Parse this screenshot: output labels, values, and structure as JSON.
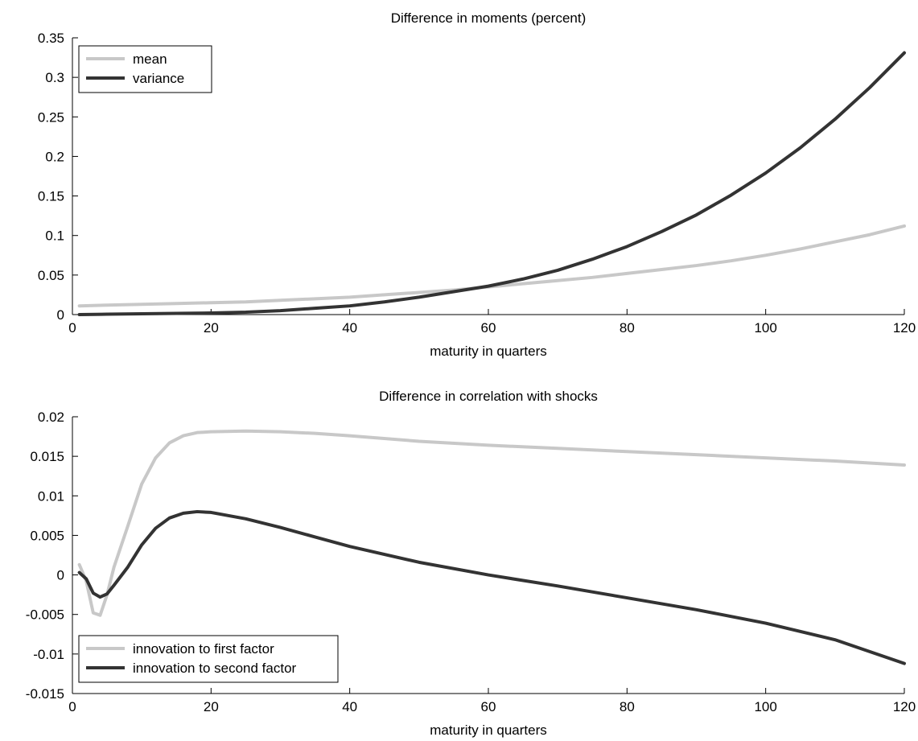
{
  "colors": {
    "light_series": "#c8c8c8",
    "dark_series": "#333333",
    "axis": "#000000"
  },
  "chart_data": [
    {
      "type": "line",
      "title": "Difference in moments (percent)",
      "xlabel": "maturity in quarters",
      "ylabel": "",
      "xlim": [
        0,
        120
      ],
      "ylim": [
        0,
        0.35
      ],
      "xticks": [
        0,
        20,
        40,
        60,
        80,
        100,
        120
      ],
      "xtick_labels": [
        "0",
        "20",
        "40",
        "60",
        "80",
        "100",
        "120"
      ],
      "yticks": [
        0,
        0.05,
        0.1,
        0.15,
        0.2,
        0.25,
        0.3,
        0.35
      ],
      "ytick_labels": [
        "0",
        "0.05",
        "0.1",
        "0.15",
        "0.2",
        "0.25",
        "0.3",
        "0.35"
      ],
      "grid": false,
      "legend_position": "top-left",
      "x": [
        1,
        5,
        10,
        15,
        20,
        25,
        30,
        35,
        40,
        45,
        50,
        55,
        60,
        65,
        70,
        75,
        80,
        85,
        90,
        95,
        100,
        105,
        110,
        115,
        120
      ],
      "series": [
        {
          "name": "mean",
          "color": "#c8c8c8",
          "values": [
            0.011,
            0.012,
            0.013,
            0.014,
            0.015,
            0.016,
            0.018,
            0.02,
            0.022,
            0.025,
            0.028,
            0.031,
            0.035,
            0.039,
            0.043,
            0.047,
            0.052,
            0.057,
            0.062,
            0.068,
            0.075,
            0.083,
            0.092,
            0.101,
            0.112
          ]
        },
        {
          "name": "variance",
          "color": "#333333",
          "values": [
            0.0,
            0.0005,
            0.001,
            0.0015,
            0.002,
            0.003,
            0.005,
            0.008,
            0.011,
            0.016,
            0.022,
            0.029,
            0.036,
            0.045,
            0.056,
            0.07,
            0.086,
            0.105,
            0.126,
            0.151,
            0.179,
            0.211,
            0.247,
            0.287,
            0.331
          ]
        }
      ]
    },
    {
      "type": "line",
      "title": "Difference in correlation with shocks",
      "xlabel": "maturity in quarters",
      "ylabel": "",
      "xlim": [
        0,
        120
      ],
      "ylim": [
        -0.015,
        0.02
      ],
      "xticks": [
        0,
        20,
        40,
        60,
        80,
        100,
        120
      ],
      "xtick_labels": [
        "0",
        "20",
        "40",
        "60",
        "80",
        "100",
        "120"
      ],
      "yticks": [
        -0.015,
        -0.01,
        -0.005,
        0,
        0.005,
        0.01,
        0.015,
        0.02
      ],
      "ytick_labels": [
        "-0.015",
        "-0.01",
        "-0.005",
        "0",
        "0.005",
        "0.01",
        "0.015",
        "0.02"
      ],
      "grid": false,
      "legend_position": "bottom-left",
      "x": [
        1,
        2,
        3,
        4,
        5,
        6,
        8,
        10,
        12,
        14,
        16,
        18,
        20,
        25,
        30,
        35,
        40,
        50,
        60,
        70,
        80,
        90,
        100,
        110,
        120
      ],
      "series": [
        {
          "name": "innovation to first factor",
          "color": "#c8c8c8",
          "values": [
            0.0013,
            -0.0008,
            -0.0048,
            -0.0051,
            -0.0025,
            0.001,
            0.0062,
            0.0115,
            0.0148,
            0.0167,
            0.0176,
            0.018,
            0.0181,
            0.0182,
            0.0181,
            0.0179,
            0.0176,
            0.0169,
            0.0164,
            0.016,
            0.0156,
            0.0152,
            0.0148,
            0.0144,
            0.0139
          ]
        },
        {
          "name": "innovation to second factor",
          "color": "#333333",
          "values": [
            0.0003,
            -0.0005,
            -0.0023,
            -0.0028,
            -0.0024,
            -0.0013,
            0.001,
            0.0038,
            0.0059,
            0.0072,
            0.0078,
            0.008,
            0.0079,
            0.0071,
            0.006,
            0.0048,
            0.0036,
            0.0016,
            0.0,
            -0.0014,
            -0.0029,
            -0.0044,
            -0.0061,
            -0.0082,
            -0.0112
          ]
        }
      ]
    }
  ]
}
